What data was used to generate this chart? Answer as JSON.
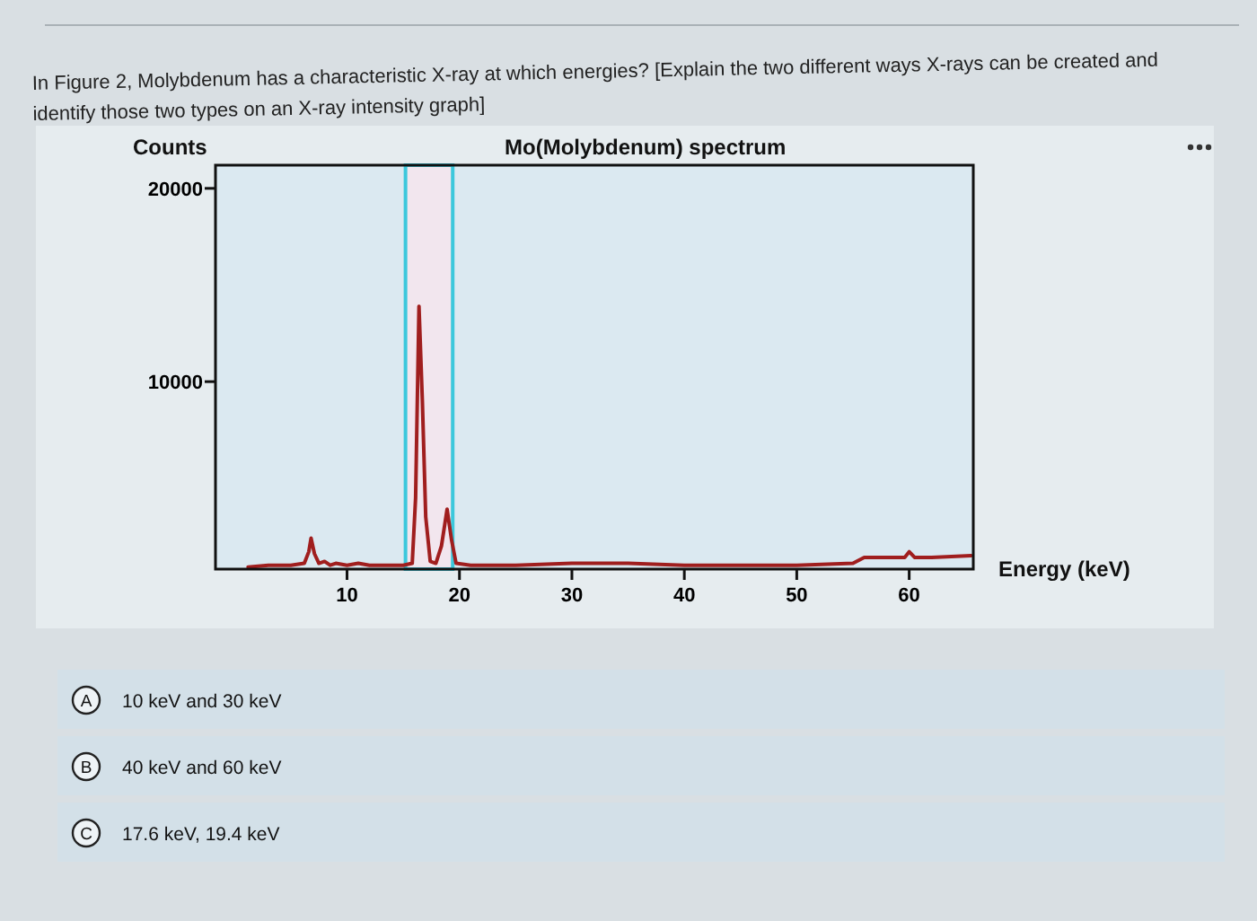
{
  "chart_data": {
    "type": "line",
    "title": "Mo(Molybdenum) spectrum",
    "xlabel": "Energy (keV)",
    "ylabel": "Counts",
    "annotations": [
      "In Figure 2, Molybdenum has a characteristic X-ray at which energies? [Explain the two different ways X-rays can be created and identify those two types on an X-ray intensity graph]",
      "A",
      "10 keV and 30 keV",
      "B",
      "40 keV and 60 keV",
      "C",
      "17.6 keV, 19.4 keV"
    ],
    "xlim": [
      -1.7,
      65.7
    ],
    "xticks": [
      10,
      20,
      30,
      40,
      50,
      60
    ],
    "ylim": [
      300,
      21200
    ],
    "yticks": [
      10000,
      20000
    ],
    "grid": false,
    "bands": [
      {
        "axis": "x",
        "from": 15.2,
        "to": 19.4,
        "color": "#3cc8dc"
      }
    ],
    "series": [
      {
        "color": "#a01e1e",
        "x": [
          1.2,
          3,
          5,
          6.2,
          6.6,
          6.8,
          7.1,
          7.5,
          8,
          8.5,
          9,
          10,
          11,
          12,
          13,
          14,
          15,
          15.8,
          16.1,
          16.4,
          16.7,
          17,
          17.4,
          17.9,
          18.4,
          18.9,
          19.3,
          19.7,
          21,
          25,
          30,
          35,
          40,
          45,
          50,
          55,
          56,
          59,
          59.6,
          60,
          60.5,
          62,
          65.5
        ],
        "values": [
          400,
          500,
          500,
          600,
          1200,
          1900,
          1100,
          600,
          700,
          500,
          600,
          500,
          600,
          500,
          500,
          500,
          500,
          600,
          4000,
          13900,
          9000,
          3000,
          700,
          600,
          1500,
          3400,
          1800,
          600,
          500,
          500,
          600,
          600,
          500,
          500,
          500,
          600,
          900,
          900,
          900,
          1200,
          900,
          900,
          1000
        ]
      }
    ]
  }
}
